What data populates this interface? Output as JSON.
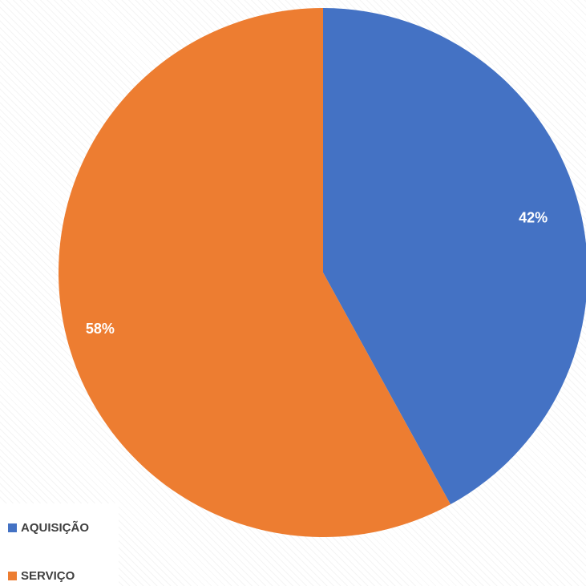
{
  "chart_data": {
    "type": "pie",
    "categories": [
      "AQUISIÇÃO",
      "SERVIÇO"
    ],
    "values": [
      42,
      58
    ],
    "labels": [
      "42%",
      "58%"
    ],
    "colors": [
      "#4472c4",
      "#ed7d31"
    ],
    "legend_position": "bottom-left"
  }
}
